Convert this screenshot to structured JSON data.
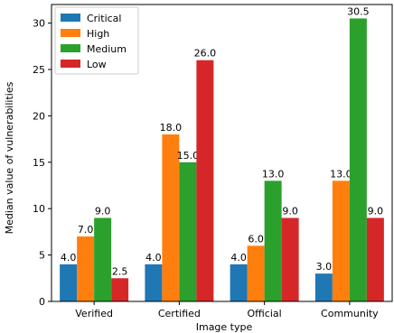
{
  "chart_data": {
    "type": "bar",
    "title": "",
    "xlabel": "Image type",
    "ylabel": "Median value of vulnerabilities",
    "categories": [
      "Verified",
      "Certified",
      "Official",
      "Community"
    ],
    "series": [
      {
        "name": "Critical",
        "color": "#1f77b4",
        "values": [
          4.0,
          4.0,
          4.0,
          3.0
        ],
        "labels": [
          "4.0",
          "4.0",
          "4.0",
          "3.0"
        ]
      },
      {
        "name": "High",
        "color": "#ff7f0e",
        "values": [
          7.0,
          18.0,
          6.0,
          13.0
        ],
        "labels": [
          "7.0",
          "18.0",
          "6.0",
          "13.0"
        ]
      },
      {
        "name": "Medium",
        "color": "#2ca02c",
        "values": [
          9.0,
          15.0,
          13.0,
          30.5
        ],
        "labels": [
          "9.0",
          "15.0",
          "13.0",
          "30.5"
        ]
      },
      {
        "name": "Low",
        "color": "#d62728",
        "values": [
          2.5,
          26.0,
          9.0,
          9.0
        ],
        "labels": [
          "2.5",
          "26.0",
          "9.0",
          "9.0"
        ]
      }
    ],
    "ylim": [
      0,
      32
    ],
    "yticks": [
      0,
      5,
      10,
      15,
      20,
      25,
      30
    ],
    "grid": false,
    "legend_position": "top-left"
  }
}
